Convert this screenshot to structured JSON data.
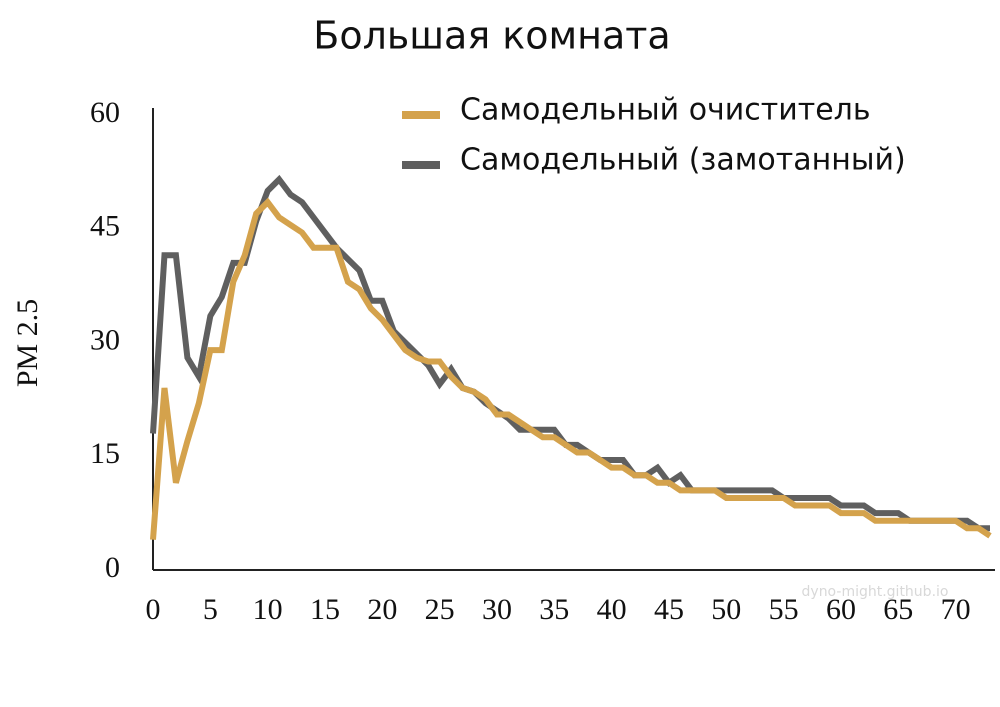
{
  "chart_data": {
    "type": "line",
    "title": "Большая комната",
    "y_label": "PM 2.5",
    "watermark": "dyno-might.github.io",
    "x": [
      0,
      1,
      2,
      3,
      4,
      5,
      6,
      7,
      8,
      9,
      10,
      11,
      12,
      13,
      14,
      15,
      16,
      17,
      18,
      19,
      20,
      21,
      22,
      23,
      24,
      25,
      26,
      27,
      28,
      29,
      30,
      31,
      32,
      33,
      34,
      35,
      36,
      37,
      38,
      39,
      40,
      41,
      42,
      43,
      44,
      45,
      46,
      47,
      48,
      49,
      50,
      51,
      52,
      53,
      54,
      55,
      56,
      57,
      58,
      59,
      60,
      61,
      62,
      63,
      64,
      65,
      66,
      67,
      68,
      69,
      70,
      71,
      72,
      73
    ],
    "series": [
      {
        "name": "Самодельный очиститель",
        "color": "#d4a24c",
        "values": [
          4,
          24,
          11.5,
          17,
          22,
          29,
          29,
          38,
          41.5,
          47,
          48.5,
          46.5,
          45.5,
          44.5,
          42.5,
          42.5,
          42.5,
          38,
          37,
          34.5,
          33,
          31,
          29,
          28,
          27.5,
          27.5,
          25.5,
          24,
          23.5,
          22.5,
          20.5,
          20.5,
          19.5,
          18.5,
          17.5,
          17.5,
          16.5,
          15.5,
          15.5,
          14.5,
          13.5,
          13.5,
          12.5,
          12.5,
          11.5,
          11.5,
          10.5,
          10.5,
          10.5,
          10.5,
          9.5,
          9.5,
          9.5,
          9.5,
          9.5,
          9.5,
          8.5,
          8.5,
          8.5,
          8.5,
          7.5,
          7.5,
          7.5,
          6.5,
          6.5,
          6.5,
          6.5,
          6.5,
          6.5,
          6.5,
          6.5,
          5.5,
          5.5,
          4.5
        ]
      },
      {
        "name": "Самодельный (замотанный)",
        "color": "#5f5f5f",
        "values": [
          18,
          41.5,
          41.5,
          28,
          25.5,
          33.5,
          36,
          40.5,
          40.5,
          46,
          50,
          51.5,
          49.5,
          48.5,
          46.5,
          44.5,
          42.5,
          41,
          39.5,
          35.5,
          35.5,
          31.5,
          30,
          28.5,
          27,
          24.5,
          26.5,
          24,
          23.5,
          22,
          21,
          20,
          18.5,
          18.5,
          18.5,
          18.5,
          16.5,
          16.5,
          15.5,
          14.5,
          14.5,
          14.5,
          12.5,
          12.5,
          13.5,
          11.5,
          12.5,
          10.5,
          10.5,
          10.5,
          10.5,
          10.5,
          10.5,
          10.5,
          10.5,
          9.5,
          9.5,
          9.5,
          9.5,
          9.5,
          8.5,
          8.5,
          8.5,
          7.5,
          7.5,
          7.5,
          6.5,
          6.5,
          6.5,
          6.5,
          6.5,
          6.5,
          5.5,
          5.5
        ]
      }
    ],
    "xlim": [
      0,
      73
    ],
    "ylim": [
      0,
      60
    ],
    "xticks": [
      0,
      5,
      10,
      15,
      20,
      25,
      30,
      35,
      40,
      45,
      50,
      55,
      60,
      65,
      70
    ],
    "yticks": [
      0,
      15,
      30,
      45,
      60
    ],
    "legend": "top-right",
    "grid": false
  }
}
